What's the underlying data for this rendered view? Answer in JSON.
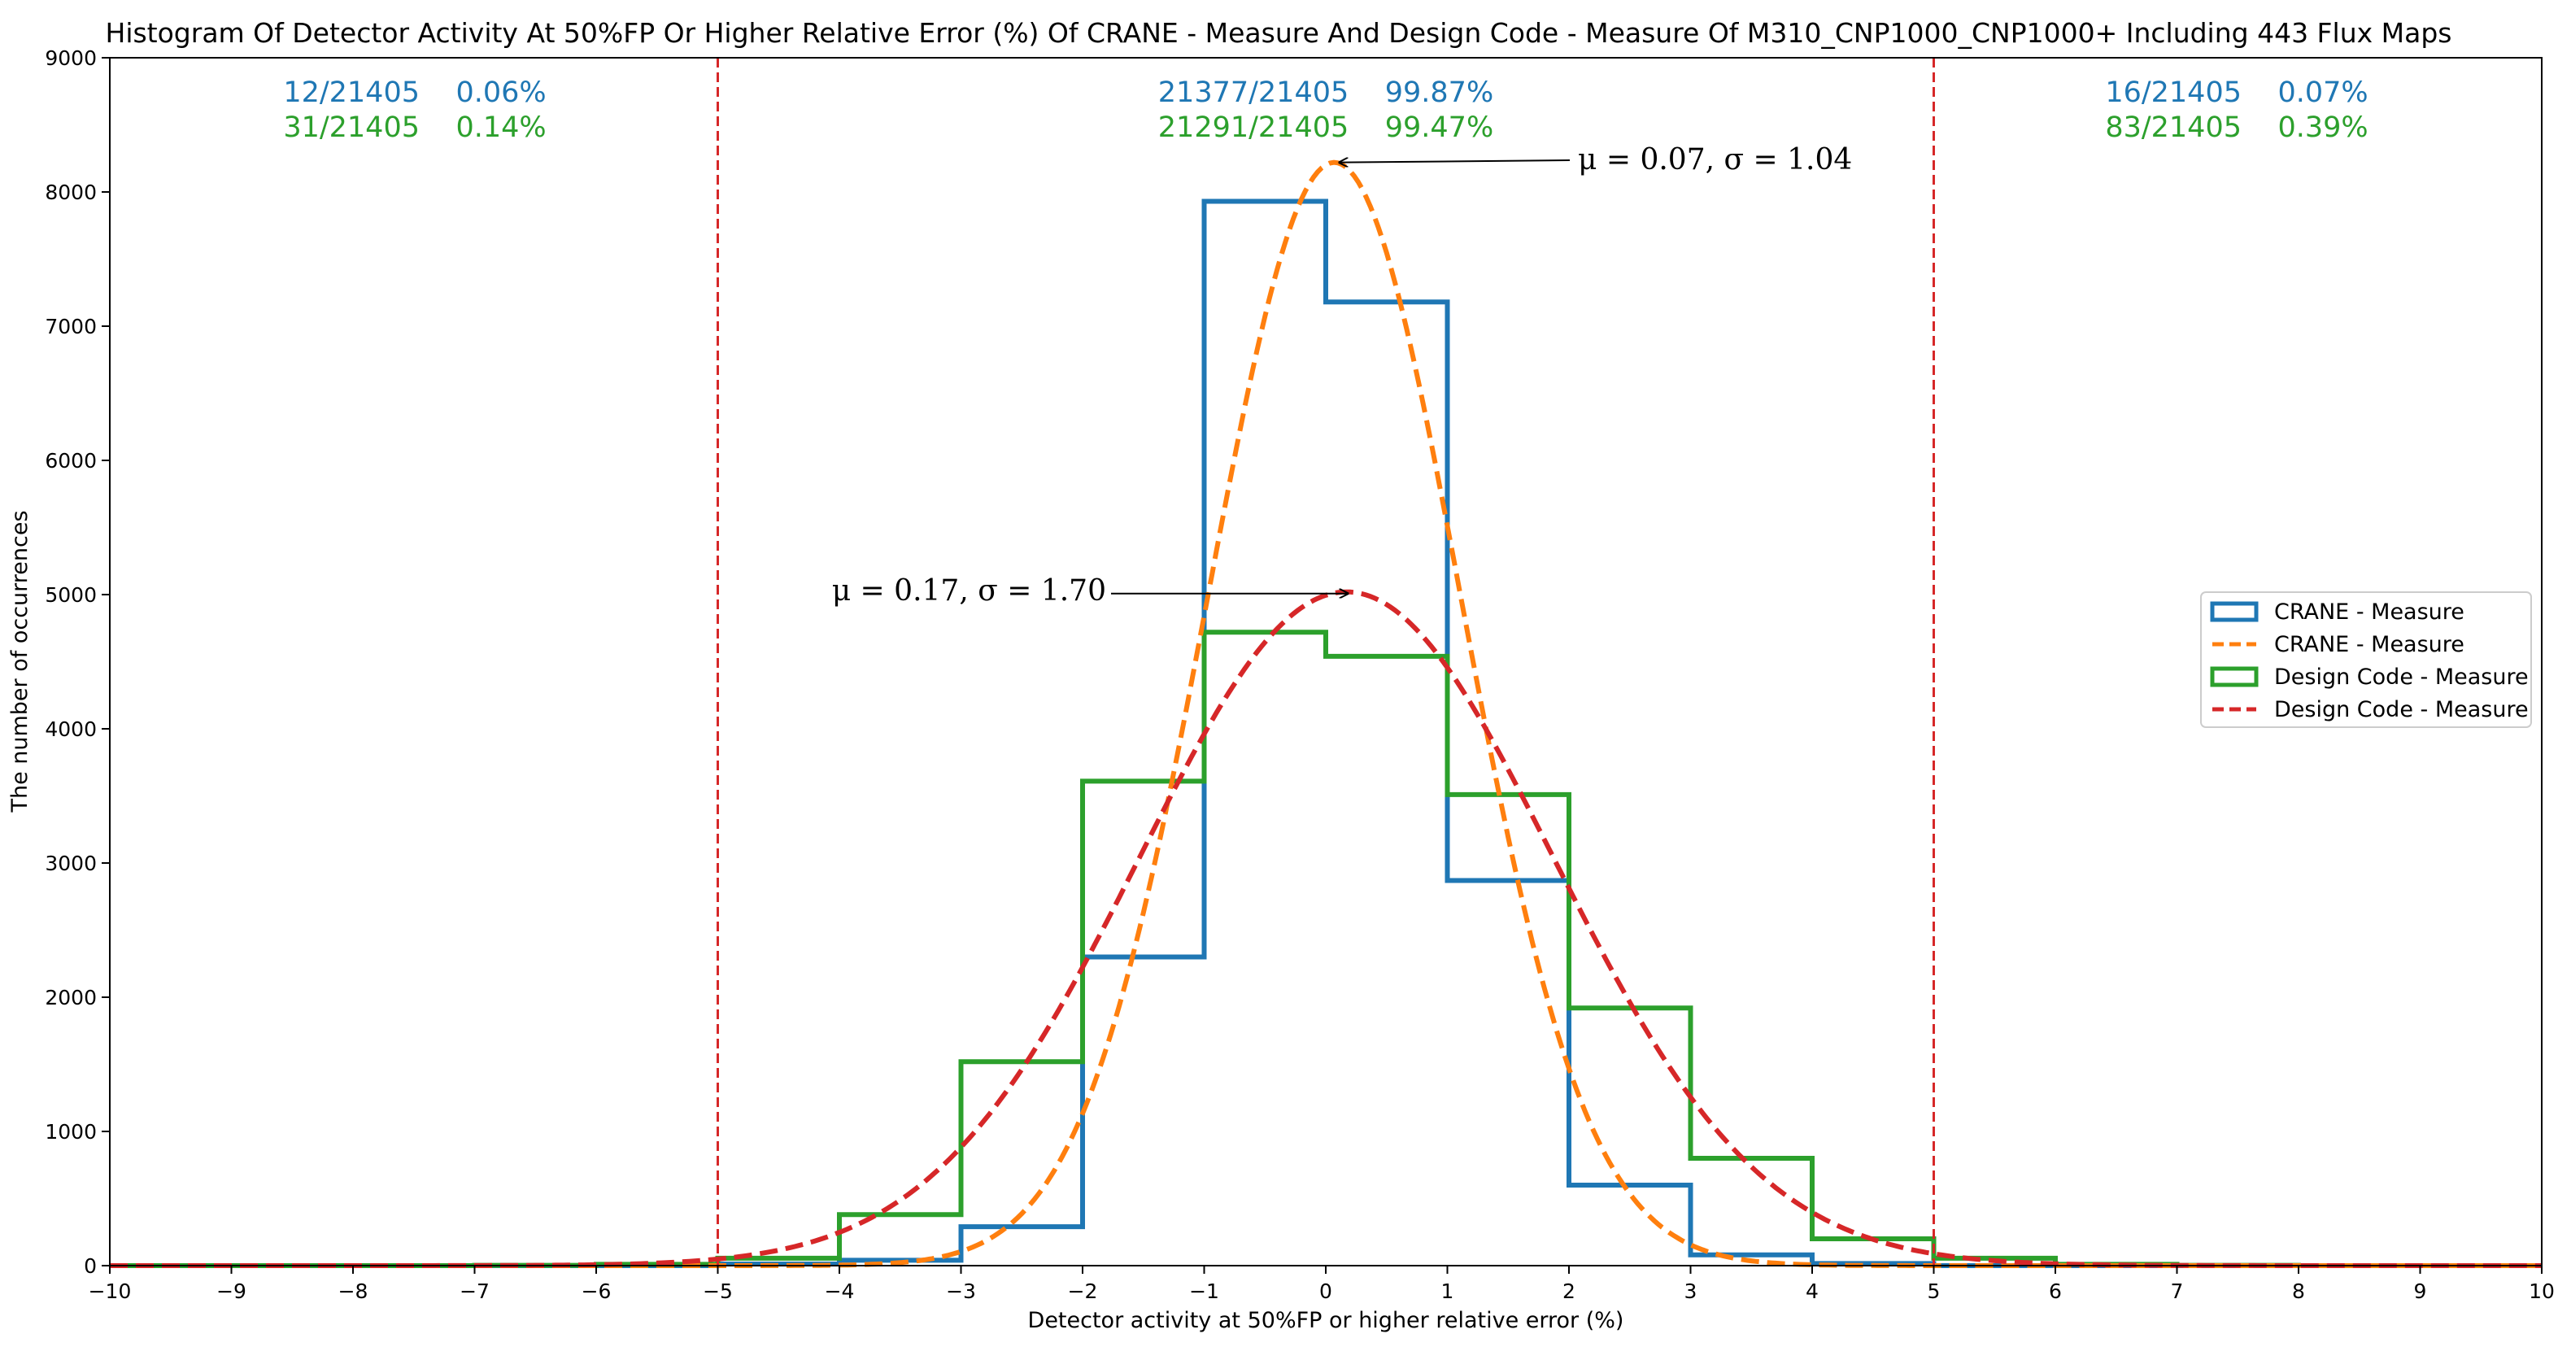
{
  "chart_data": {
    "type": "histogram",
    "title": "Histogram Of Detector Activity At 50%FP Or Higher Relative Error (%) Of CRANE - Measure And Design Code - Measure Of M310_CNP1000_CNP1000+ Including 443 Flux Maps",
    "xlabel": "Detector activity at 50%FP or higher relative error (%)",
    "ylabel": "The number of occurrences",
    "xlim": [
      -10,
      10
    ],
    "ylim": [
      0,
      9000
    ],
    "x_ticks": [
      -10,
      -9,
      -8,
      -7,
      -6,
      -5,
      -4,
      -3,
      -2,
      -1,
      0,
      1,
      2,
      3,
      4,
      5,
      6,
      7,
      8,
      9,
      10
    ],
    "y_ticks": [
      0,
      1000,
      2000,
      3000,
      4000,
      5000,
      6000,
      7000,
      8000,
      9000
    ],
    "bin_edges": [
      -10,
      -9,
      -8,
      -7,
      -6,
      -5,
      -4,
      -3,
      -2,
      -1,
      0,
      1,
      2,
      3,
      4,
      5,
      6,
      7,
      8,
      9,
      10
    ],
    "series": [
      {
        "name": "CRANE - Measure",
        "kind": "step-histogram",
        "color": "#1f77b4",
        "values": [
          0,
          0,
          0,
          0,
          0,
          12,
          40,
          290,
          2300,
          7930,
          7180,
          2870,
          600,
          80,
          16,
          0,
          0,
          0,
          0,
          0
        ]
      },
      {
        "name": "CRANE - Measure",
        "kind": "normal-fit",
        "color": "#ff7f0e",
        "mu": 0.07,
        "sigma": 1.04,
        "peak": 8220
      },
      {
        "name": "Design Code - Measure",
        "kind": "step-histogram",
        "color": "#2ca02c",
        "values": [
          0,
          0,
          0,
          2,
          10,
          55,
          380,
          1520,
          3610,
          4720,
          4540,
          3510,
          1920,
          800,
          200,
          55,
          10,
          2,
          0,
          0
        ]
      },
      {
        "name": "Design Code - Measure",
        "kind": "normal-fit",
        "color": "#d62728",
        "mu": 0.17,
        "sigma": 1.7,
        "peak": 5020
      }
    ],
    "threshold_lines": [
      -5,
      5
    ],
    "threshold_color": "#d62728",
    "region_counts": [
      {
        "region": "left",
        "crane": "12/21405    0.06%",
        "design": "31/21405    0.14%"
      },
      {
        "region": "center",
        "crane": "21377/21405    99.87%",
        "design": "21291/21405    99.47%"
      },
      {
        "region": "right",
        "crane": "16/21405    0.07%",
        "design": "83/21405    0.39%"
      }
    ],
    "annotations": [
      {
        "text": "μ = 0.07, σ = 1.04",
        "points_to_x": 0.07,
        "points_to_y": 8220
      },
      {
        "text": "μ = 0.17, σ = 1.70",
        "points_to_x": 0.17,
        "points_to_y": 5020
      }
    ],
    "legend_position": "center-right",
    "grid": false
  }
}
